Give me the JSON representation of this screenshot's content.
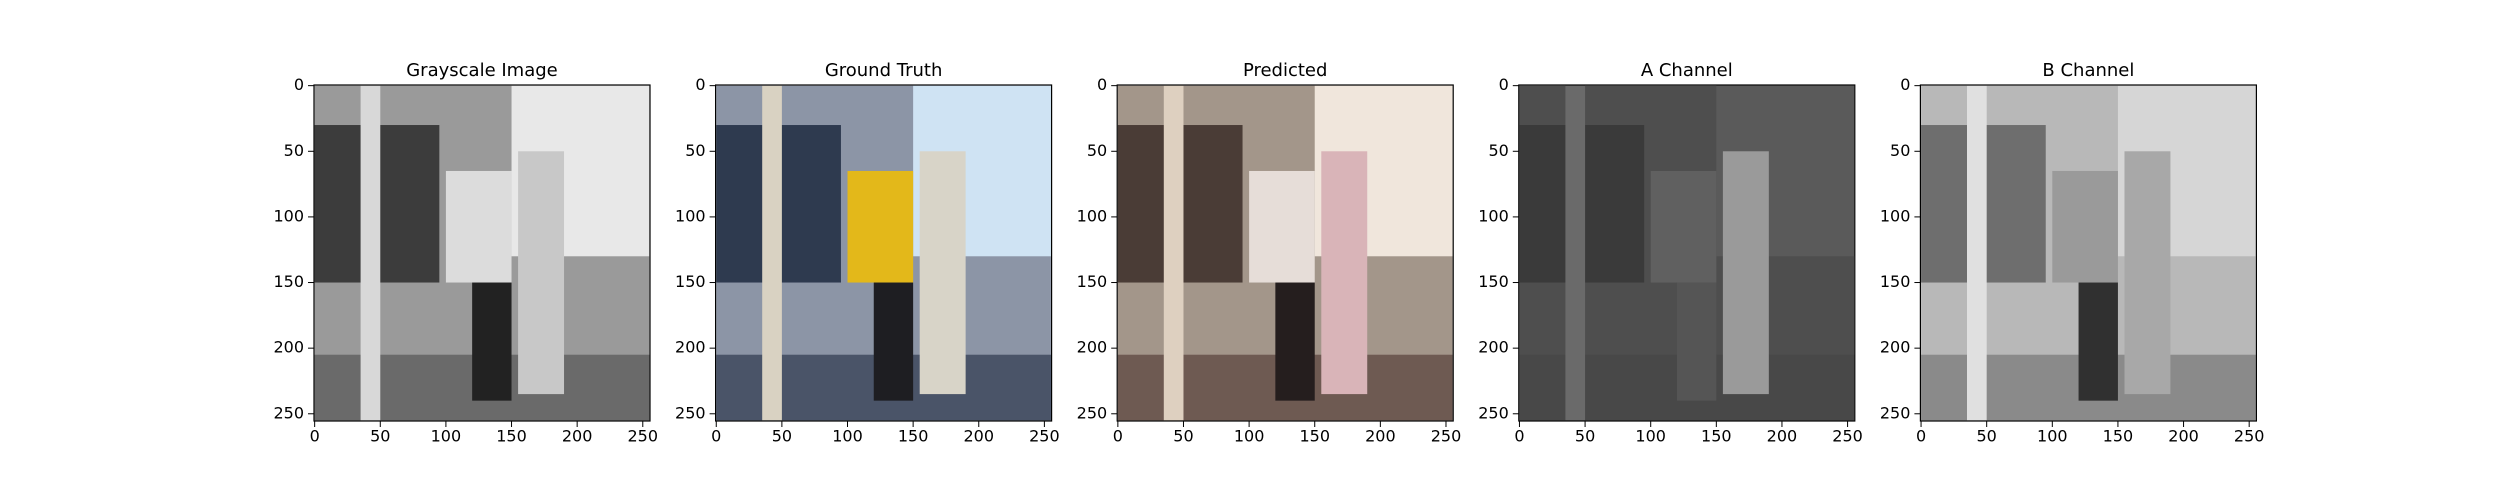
{
  "chart_data": [
    {
      "type": "image",
      "title": "Grayscale Image",
      "xlim": [
        -0.5,
        255.5
      ],
      "ylim": [
        255.5,
        -0.5
      ],
      "xticks": [
        0,
        50,
        100,
        150,
        200,
        250
      ],
      "yticks": [
        0,
        50,
        100,
        150,
        200,
        250
      ]
    },
    {
      "type": "image",
      "title": "Ground Truth",
      "xlim": [
        -0.5,
        255.5
      ],
      "ylim": [
        255.5,
        -0.5
      ],
      "xticks": [
        0,
        50,
        100,
        150,
        200,
        250
      ],
      "yticks": [
        0,
        50,
        100,
        150,
        200,
        250
      ]
    },
    {
      "type": "image",
      "title": "Predicted",
      "xlim": [
        -0.5,
        255.5
      ],
      "ylim": [
        255.5,
        -0.5
      ],
      "xticks": [
        0,
        50,
        100,
        150,
        200,
        250
      ],
      "yticks": [
        0,
        50,
        100,
        150,
        200,
        250
      ]
    },
    {
      "type": "image",
      "title": "A Channel",
      "xlim": [
        -0.5,
        255.5
      ],
      "ylim": [
        255.5,
        -0.5
      ],
      "xticks": [
        0,
        50,
        100,
        150,
        200,
        250
      ],
      "yticks": [
        0,
        50,
        100,
        150,
        200,
        250
      ]
    },
    {
      "type": "image",
      "title": "B Channel",
      "xlim": [
        -0.5,
        255.5
      ],
      "ylim": [
        255.5,
        -0.5
      ],
      "xticks": [
        0,
        50,
        100,
        150,
        200,
        250
      ],
      "yticks": [
        0,
        50,
        100,
        150,
        200,
        250
      ]
    }
  ]
}
